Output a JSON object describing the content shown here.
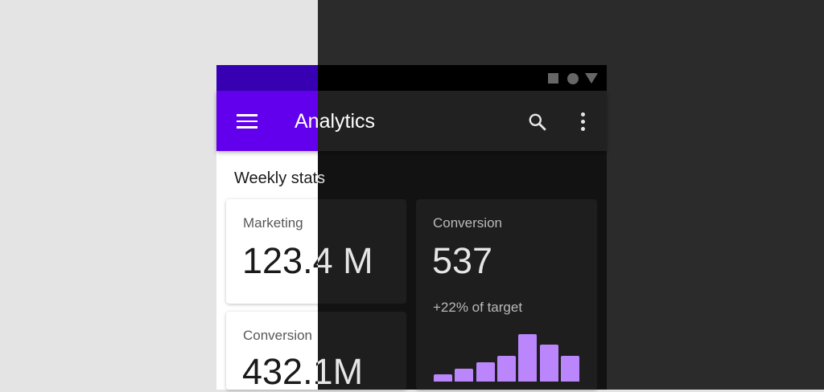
{
  "status_bar": {
    "icons": [
      "square-icon",
      "circle-icon",
      "triangle-icon"
    ]
  },
  "app_bar": {
    "title": "Analytics",
    "menu_icon": "menu-icon",
    "search_icon": "search-icon",
    "more_icon": "more-vert-icon"
  },
  "section_title": "Weekly stats",
  "cards": [
    {
      "label": "Marketing",
      "value": "123.4 M"
    },
    {
      "label": "Conversion",
      "value": "537",
      "subtitle": "+22% of target"
    },
    {
      "label": "Conversion",
      "value": "432.1M"
    }
  ],
  "colors": {
    "primary": "#6200ee",
    "primary_variant": "#3700b3",
    "dark_surface": "#121212",
    "bar": "#bb86fc"
  },
  "chart_data": {
    "type": "bar",
    "values": [
      9,
      16,
      24,
      32,
      59,
      46,
      32
    ]
  }
}
